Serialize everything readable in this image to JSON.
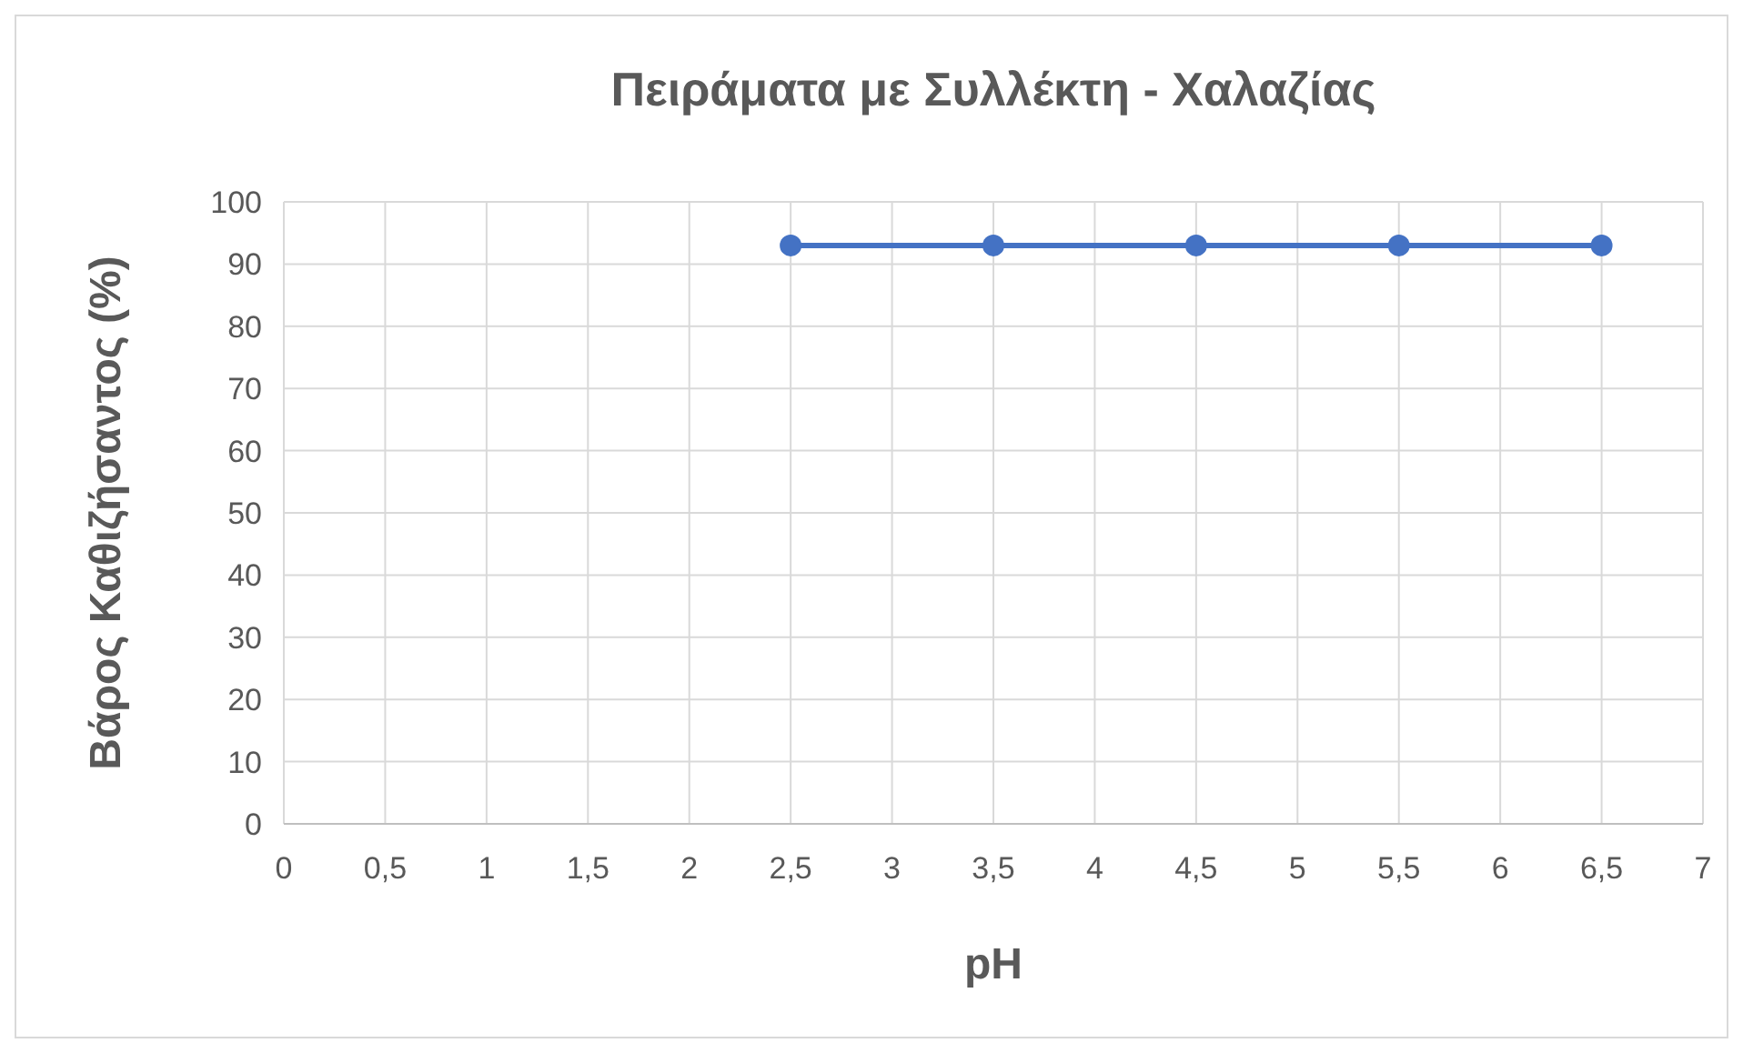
{
  "chart_data": {
    "type": "line",
    "title": "Πειράματα με Συλλέκτη - Χαλαζίας",
    "xlabel": "pH",
    "ylabel": "Βάρος Καθιζήσαντος (%)",
    "x": [
      2.5,
      3.5,
      4.5,
      5.5,
      6.5
    ],
    "series": [
      {
        "color": "#4472c4",
        "values": [
          93,
          93,
          93,
          93,
          93
        ]
      }
    ],
    "xlim": [
      0,
      7
    ],
    "xticks": [
      0,
      {
        "value": 0.5,
        "label": "0,5"
      },
      1,
      {
        "value": 1.5,
        "label": "1,5"
      },
      2,
      {
        "value": 2.5,
        "label": "2,5"
      },
      3,
      {
        "value": 3.5,
        "label": "3,5"
      },
      4,
      {
        "value": 4.5,
        "label": "4,5"
      },
      5,
      {
        "value": 5.5,
        "label": "5,5"
      },
      6,
      {
        "value": 6.5,
        "label": "6,5"
      },
      7
    ],
    "ylim": [
      0,
      100
    ],
    "yticks": [
      0,
      10,
      20,
      30,
      40,
      50,
      60,
      70,
      80,
      90,
      100
    ],
    "grid": true,
    "marker": "circle",
    "line_style": "solid"
  }
}
